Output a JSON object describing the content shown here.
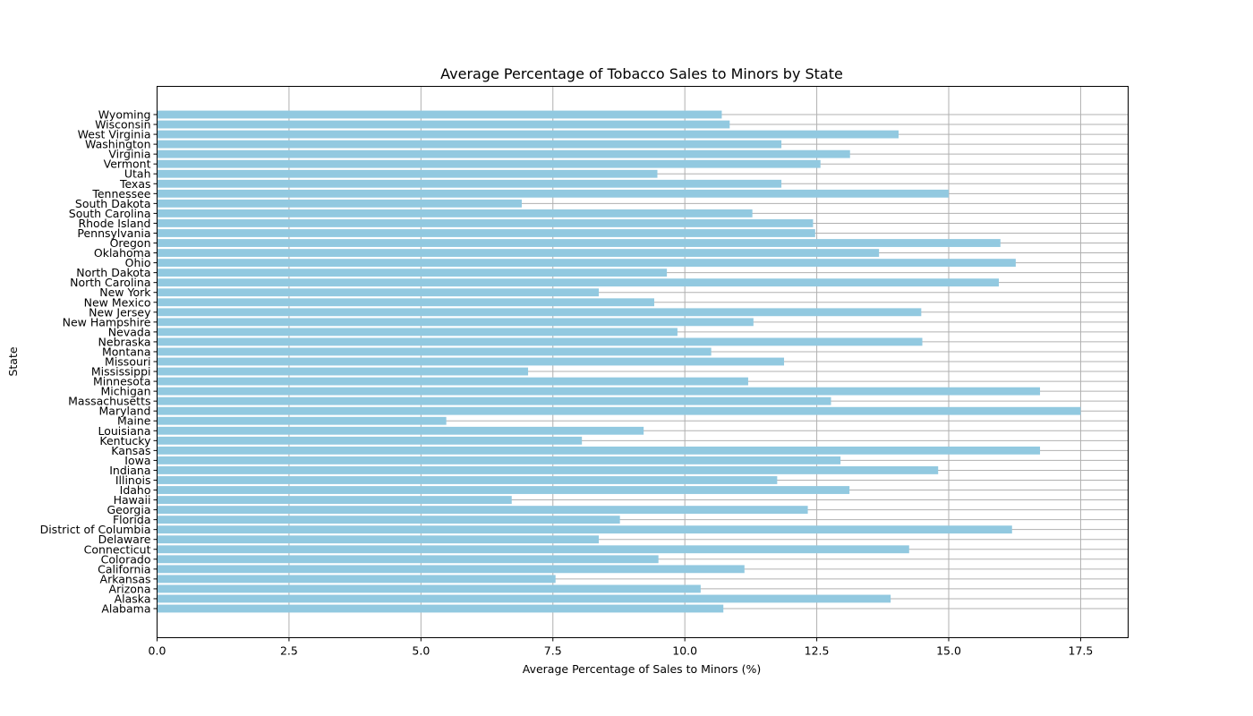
{
  "chart_data": {
    "type": "bar",
    "orientation": "horizontal",
    "title": "Average Percentage of Tobacco Sales to Minors by State",
    "xlabel": "Average Percentage of Sales to Minors (%)",
    "ylabel": "State",
    "xlim": [
      0,
      18.4
    ],
    "xticks": [
      0.0,
      2.5,
      5.0,
      7.5,
      10.0,
      12.5,
      15.0,
      17.5
    ],
    "xtick_labels": [
      "0.0",
      "2.5",
      "5.0",
      "7.5",
      "10.0",
      "12.5",
      "15.0",
      "17.5"
    ],
    "grid": true,
    "bar_color": "#92c9e0",
    "categories": [
      "Alabama",
      "Alaska",
      "Arizona",
      "Arkansas",
      "California",
      "Colorado",
      "Connecticut",
      "Delaware",
      "District of Columbia",
      "Florida",
      "Georgia",
      "Hawaii",
      "Idaho",
      "Illinois",
      "Indiana",
      "Iowa",
      "Kansas",
      "Kentucky",
      "Louisiana",
      "Maine",
      "Maryland",
      "Massachusetts",
      "Michigan",
      "Minnesota",
      "Mississippi",
      "Missouri",
      "Montana",
      "Nebraska",
      "Nevada",
      "New Hampshire",
      "New Jersey",
      "New Mexico",
      "New York",
      "North Carolina",
      "North Dakota",
      "Ohio",
      "Oklahoma",
      "Oregon",
      "Pennsylvania",
      "Rhode Island",
      "South Carolina",
      "South Dakota",
      "Tennessee",
      "Texas",
      "Utah",
      "Vermont",
      "Virginia",
      "Washington",
      "West Virginia",
      "Wisconsin",
      "Wyoming"
    ],
    "values": [
      10.73,
      13.9,
      10.3,
      7.55,
      11.13,
      9.5,
      14.25,
      8.37,
      16.2,
      8.77,
      12.33,
      6.72,
      13.12,
      11.75,
      14.8,
      12.95,
      16.73,
      8.05,
      9.22,
      5.48,
      17.5,
      12.77,
      16.73,
      11.2,
      7.03,
      11.88,
      10.5,
      14.5,
      9.86,
      11.3,
      14.48,
      9.42,
      8.37,
      15.95,
      9.66,
      16.27,
      13.68,
      15.98,
      12.47,
      12.43,
      11.28,
      6.91,
      15.0,
      11.83,
      9.48,
      12.57,
      13.13,
      11.83,
      14.05,
      10.85,
      10.7
    ]
  }
}
